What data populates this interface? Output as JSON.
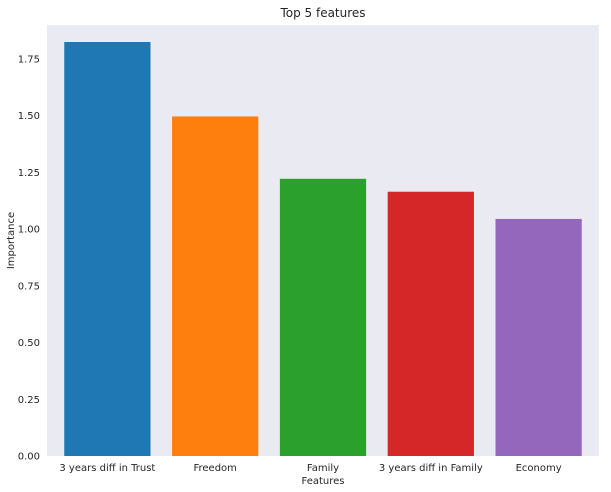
{
  "chart_data": {
    "type": "bar",
    "title": "Top 5 features",
    "xlabel": "Features",
    "ylabel": "Importance",
    "categories": [
      "3 years diff in Trust",
      "Freedom",
      "Family",
      "3 years diff in Family",
      "Economy"
    ],
    "values": [
      1.825,
      1.497,
      1.222,
      1.165,
      1.045
    ],
    "colors": [
      "#1f77b4",
      "#ff7f0e",
      "#2ca02c",
      "#d62728",
      "#9467bd"
    ],
    "ylim": [
      0,
      1.9
    ],
    "yticks": [
      "0.00",
      "0.25",
      "0.50",
      "0.75",
      "1.00",
      "1.25",
      "1.50",
      "1.75"
    ],
    "grid": false,
    "background": "#eaeaf2"
  }
}
